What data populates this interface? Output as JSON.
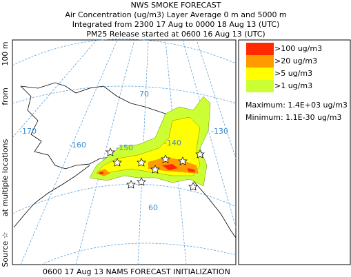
{
  "header": {
    "lines": [
      "NWS SMOKE FORECAST",
      "Air Concentration (ug/m3) Layer Average    0 m and  5000 m",
      "Integrated from 2300 17 Aug to 0000 18 Aug 13 (UTC)",
      "PM25 Release started at 0600 16 Aug 13 (UTC)"
    ]
  },
  "side_label": [
    "Source ☆",
    "at multiple locations",
    "from",
    "100 m"
  ],
  "map": {
    "grid_labels": [
      "-170",
      "-160",
      "-150",
      "-140",
      "-130",
      "70",
      "60"
    ]
  },
  "legend": {
    "items": [
      {
        "label": ">100 ug/m3",
        "color": "#ff2a00"
      },
      {
        "label": ">20 ug/m3",
        "color": "#ff9a00"
      },
      {
        "label": ">5 ug/m3",
        "color": "#ffff00"
      },
      {
        "label": ">1 ug/m3",
        "color": "#ccff33"
      }
    ],
    "maximum": "Maximum: 1.4E+03 ug/m3",
    "minimum": "Minimum: 1.1E-30 ug/m3"
  },
  "footer": "0600 17 Aug 13 NAMS FORECAST INITIALIZATION"
}
